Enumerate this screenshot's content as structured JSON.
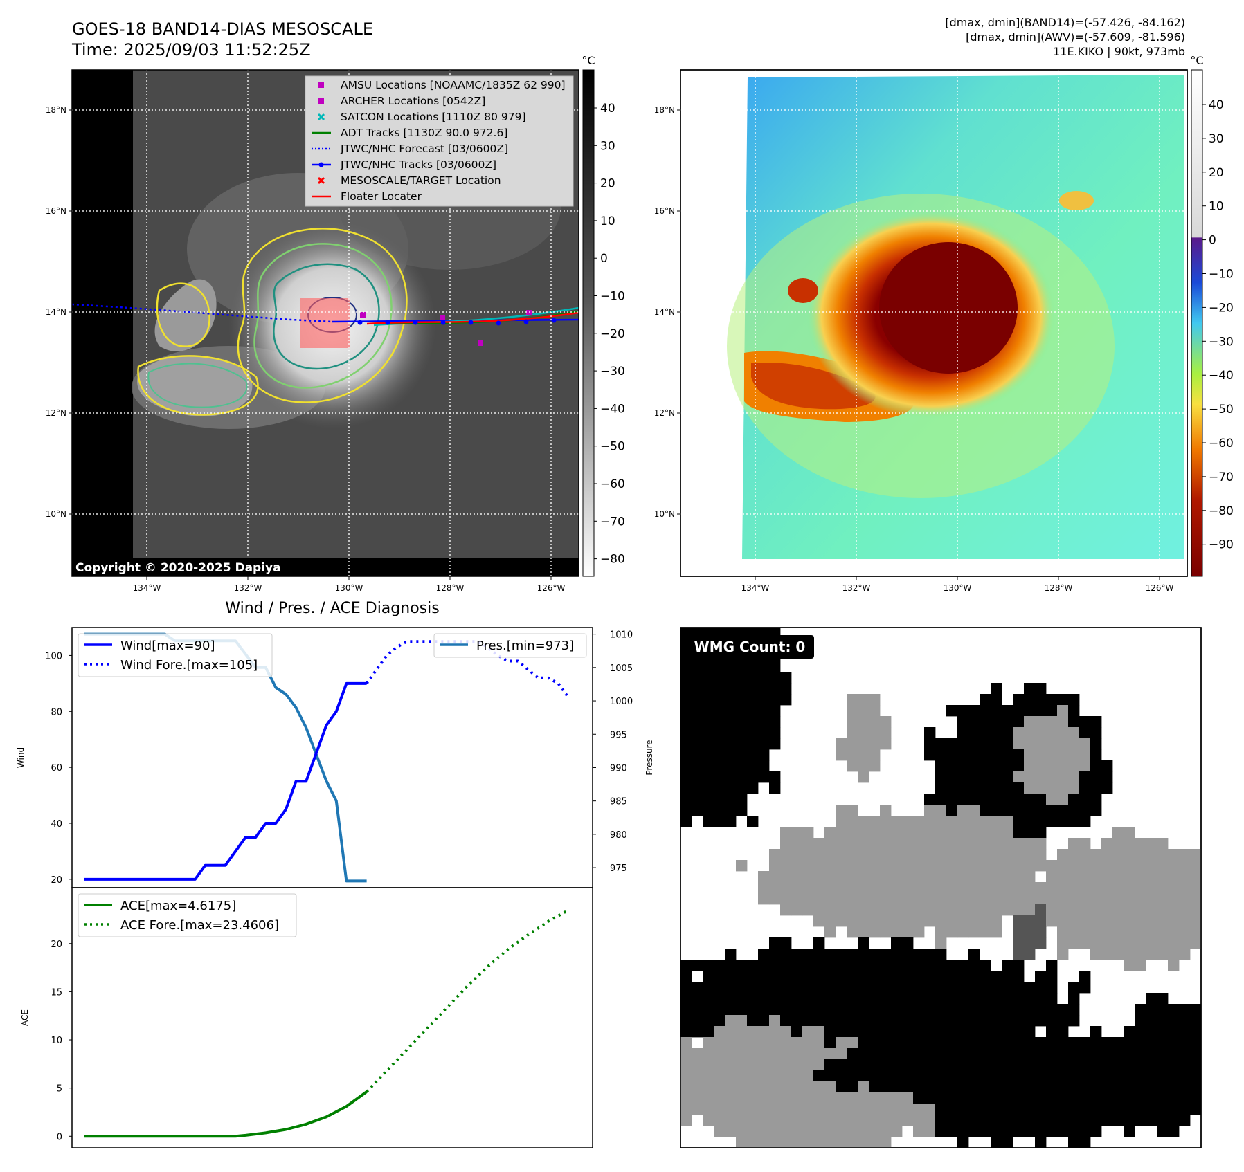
{
  "header": {
    "title_line1": "GOES-18 BAND14-DIAS MESOSCALE",
    "title_line2": "Time: 2025/09/03 11:52:25Z",
    "info_line1": "[dmax, dmin](BAND14)=(-57.426, -84.162)",
    "info_line2": "[dmax, dmin](AWV)=(-57.609, -81.596)",
    "info_line3": "11E.KIKO | 90kt, 973mb"
  },
  "map": {
    "lat_ticks": [
      "18°N",
      "16°N",
      "14°N",
      "12°N",
      "10°N"
    ],
    "lon_ticks": [
      "134°W",
      "132°W",
      "130°W",
      "128°W",
      "126°W"
    ],
    "copyright": "Copyright © 2020-2025 Dapiya",
    "unit": "°C",
    "ir_colorbar_ticks": [
      "40",
      "30",
      "20",
      "10",
      "0",
      "−10",
      "−20",
      "−30",
      "−40",
      "−50",
      "−60",
      "−70",
      "−80"
    ],
    "awv_colorbar_ticks": [
      "40",
      "30",
      "20",
      "10",
      "0",
      "−10",
      "−20",
      "−30",
      "−40",
      "−50",
      "−60",
      "−70",
      "−80",
      "−90"
    ],
    "legend": [
      {
        "label": "AMSU Locations [NOAAMC/1835Z 62 990]",
        "color": "#c000c0",
        "marker": "square"
      },
      {
        "label": "ARCHER Locations [0542Z]",
        "color": "#c000c0",
        "marker": "square"
      },
      {
        "label": "SATCON Locations [1110Z 80 979]",
        "color": "#00b8b8",
        "marker": "x"
      },
      {
        "label": "ADT Tracks [1130Z 90.0 972.6]",
        "color": "#008000",
        "marker": "line"
      },
      {
        "label": "JTWC/NHC Forecast [03/0600Z]",
        "color": "#0000ff",
        "marker": "dotted"
      },
      {
        "label": "JTWC/NHC Tracks [03/0600Z]",
        "color": "#0000ff",
        "marker": "line-dot"
      },
      {
        "label": "MESOSCALE/TARGET Location",
        "color": "#ff0000",
        "marker": "x"
      },
      {
        "label": "Floater Locater",
        "color": "#ff0000",
        "marker": "line"
      }
    ]
  },
  "diagnosis": {
    "title": "Wind / Pres. / ACE Diagnosis",
    "wind_ylabel": "Wind",
    "pres_ylabel": "Pressure",
    "ace_ylabel": "ACE",
    "wind_ticks": [
      "100",
      "80",
      "60",
      "40",
      "20"
    ],
    "pres_ticks": [
      "1010",
      "1005",
      "1000",
      "995",
      "990",
      "985",
      "980",
      "975"
    ],
    "ace_ticks": [
      "20",
      "15",
      "10",
      "5",
      "0"
    ],
    "legend_wind": "Wind[max=90]",
    "legend_wind_fore": "Wind Fore.[max=105]",
    "legend_pres": "Pres.[min=973]",
    "legend_ace": "ACE[max=4.6175]",
    "legend_ace_fore": "ACE Fore.[max=23.4606]",
    "colors": {
      "wind": "#0000ff",
      "pres": "#1f77b4",
      "ace": "#008000"
    }
  },
  "wmg": {
    "label": "WMG Count: 0"
  },
  "chart_data": [
    {
      "type": "line",
      "panel": "wind-pressure",
      "x": [
        0,
        1,
        2,
        3,
        4,
        5,
        6,
        7,
        8,
        9,
        10,
        11,
        12,
        13,
        14,
        15,
        16,
        17,
        18,
        19,
        20,
        21,
        22,
        23,
        24,
        25,
        26,
        27,
        28,
        29,
        30,
        31,
        32,
        33,
        34,
        35,
        36,
        37,
        38,
        39,
        40,
        41,
        42,
        43,
        44,
        45,
        46,
        47,
        48
      ],
      "series": [
        {
          "name": "Wind[max=90]",
          "x": [
            0,
            1,
            2,
            3,
            4,
            5,
            6,
            7,
            8,
            9,
            10,
            11,
            12,
            13,
            14,
            15,
            16,
            17,
            18,
            19,
            20,
            21,
            22,
            23,
            24,
            25,
            26,
            27,
            28
          ],
          "values": [
            20,
            20,
            20,
            20,
            20,
            20,
            20,
            20,
            20,
            20,
            20,
            20,
            25,
            25,
            25,
            30,
            35,
            35,
            40,
            40,
            45,
            55,
            55,
            65,
            75,
            80,
            90,
            90,
            90
          ]
        },
        {
          "name": "Wind Fore.[max=105]",
          "x": [
            28,
            29,
            30,
            31,
            32,
            33,
            34,
            35,
            36,
            37,
            38,
            39,
            40,
            41,
            42,
            43,
            44,
            45,
            46,
            47,
            48
          ],
          "values": [
            90,
            95,
            100,
            103,
            105,
            105,
            105,
            105,
            105,
            105,
            105,
            105,
            103,
            100,
            98,
            98,
            95,
            92,
            92,
            90,
            85
          ],
          "style": "dotted"
        },
        {
          "name": "Pres.[min=973]",
          "x": [
            0,
            1,
            2,
            3,
            4,
            5,
            6,
            7,
            8,
            9,
            10,
            11,
            12,
            13,
            14,
            15,
            16,
            17,
            18,
            19,
            20,
            21,
            22,
            23,
            24,
            25,
            26,
            27,
            28
          ],
          "values": [
            1010,
            1010,
            1010,
            1010,
            1010,
            1010,
            1010,
            1010,
            1010,
            1009,
            1009,
            1009,
            1009,
            1009,
            1009,
            1009,
            1007,
            1005,
            1005,
            1002,
            1001,
            999,
            996,
            992,
            988,
            985,
            973,
            973,
            973
          ],
          "axis": "right"
        }
      ],
      "y_left": {
        "label": "Wind",
        "range": [
          17,
          110
        ]
      },
      "y_right": {
        "label": "Pressure",
        "range": [
          972,
          1011
        ]
      }
    },
    {
      "type": "line",
      "panel": "ace",
      "series": [
        {
          "name": "ACE[max=4.6175]",
          "x": [
            0,
            5,
            10,
            15,
            16,
            18,
            20,
            22,
            24,
            26,
            28
          ],
          "values": [
            0,
            0,
            0,
            0,
            0.1,
            0.35,
            0.7,
            1.25,
            2.0,
            3.1,
            4.6175
          ]
        },
        {
          "name": "ACE Fore.[max=23.4606]",
          "x": [
            28,
            30,
            32,
            34,
            36,
            38,
            40,
            42,
            44,
            46,
            48
          ],
          "values": [
            4.6175,
            6.8,
            9.0,
            11.2,
            13.4,
            15.6,
            17.6,
            19.4,
            20.9,
            22.3,
            23.4606
          ],
          "style": "dotted"
        }
      ],
      "y": {
        "label": "ACE",
        "range": [
          -1.2,
          25.8
        ]
      }
    }
  ]
}
